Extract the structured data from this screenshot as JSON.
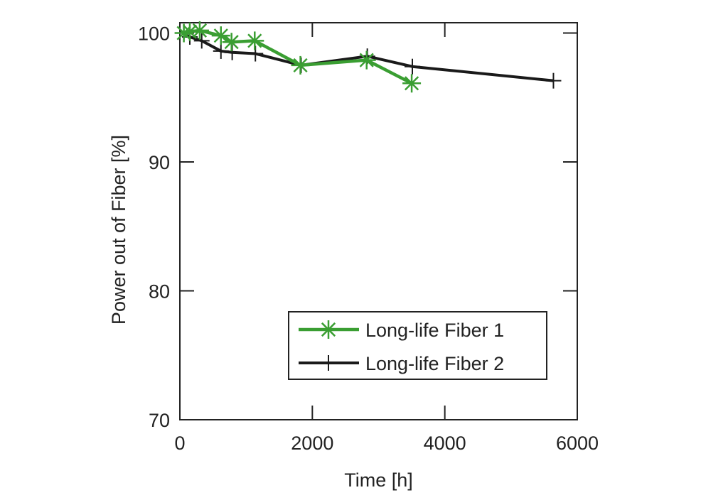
{
  "chart_data": {
    "type": "line",
    "xlabel": "Time [h]",
    "ylabel": "Power out of Fiber [%]",
    "xlim": [
      0,
      6000
    ],
    "ylim": [
      70,
      100.8
    ],
    "xticks": [
      0,
      2000,
      4000,
      6000
    ],
    "yticks": [
      70,
      80,
      90,
      100
    ],
    "grid": false,
    "legend_position": "bottom-right",
    "series": [
      {
        "name": "Long-life Fiber 1",
        "color": "#3a9e32",
        "marker": "asterisk",
        "x": [
          60,
          150,
          300,
          620,
          780,
          1130,
          1820,
          2820,
          3500
        ],
        "y": [
          100.0,
          100.1,
          100.2,
          99.8,
          99.3,
          99.4,
          97.5,
          97.9,
          96.1
        ]
      },
      {
        "name": "Long-life Fiber 2",
        "color": "#1a1a1a",
        "marker": "plus",
        "x": [
          60,
          150,
          330,
          620,
          790,
          1140,
          1830,
          2830,
          3510,
          5640
        ],
        "y": [
          100.0,
          99.7,
          99.4,
          98.6,
          98.5,
          98.4,
          97.5,
          98.2,
          97.4,
          96.3
        ]
      }
    ]
  }
}
